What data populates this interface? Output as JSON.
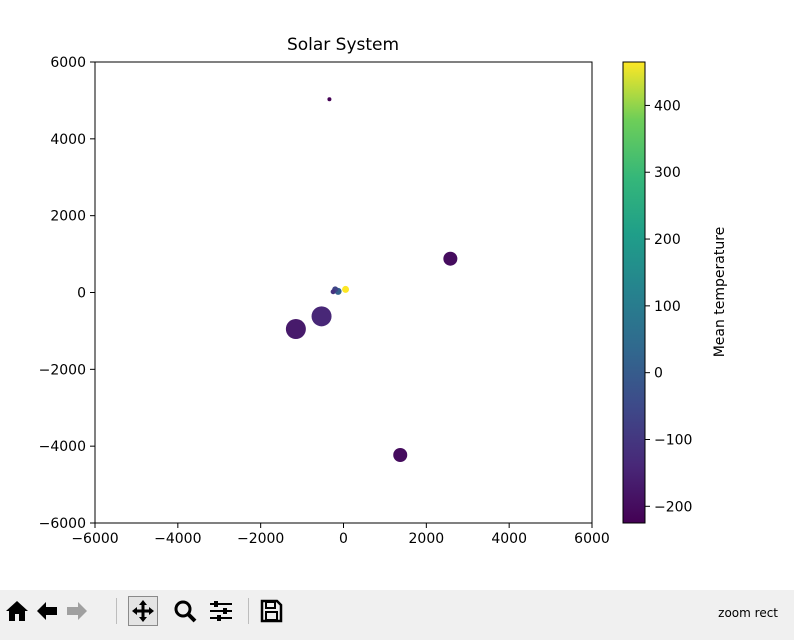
{
  "chart_data": {
    "type": "scatter",
    "title": "Solar System",
    "xlabel": "",
    "ylabel": "",
    "xlim": [
      -6000,
      6000
    ],
    "ylim": [
      -6000,
      6000
    ],
    "xticks": [
      -6000,
      -4000,
      -2000,
      0,
      2000,
      4000,
      6000
    ],
    "yticks": [
      -6000,
      -4000,
      -2000,
      0,
      2000,
      4000,
      6000
    ],
    "grid": false,
    "colormap": "viridis",
    "colorbar": {
      "label": "Mean temperature",
      "range": [
        -225,
        465
      ],
      "ticks": [
        -200,
        -100,
        0,
        100,
        200,
        300,
        400
      ]
    },
    "points": [
      {
        "x": -340,
        "y": 5030,
        "size": 2,
        "temperature": -225
      },
      {
        "x": 2580,
        "y": 880,
        "size": 7,
        "temperature": -200
      },
      {
        "x": -530,
        "y": -620,
        "size": 10,
        "temperature": -140
      },
      {
        "x": -1150,
        "y": -950,
        "size": 10,
        "temperature": -170
      },
      {
        "x": 1370,
        "y": -4230,
        "size": 7,
        "temperature": -200
      },
      {
        "x": 50,
        "y": 80,
        "size": 3.5,
        "temperature": 465
      },
      {
        "x": -130,
        "y": 30,
        "size": 3.5,
        "temperature": 15
      },
      {
        "x": -200,
        "y": 80,
        "size": 3,
        "temperature": -65
      },
      {
        "x": -250,
        "y": 20,
        "size": 2.5,
        "temperature": -110
      }
    ]
  },
  "toolbar": {
    "buttons": [
      {
        "name": "home",
        "glyph": "🏠"
      },
      {
        "name": "back",
        "glyph": "←"
      },
      {
        "name": "forward",
        "glyph": "→"
      },
      {
        "name": "pan",
        "glyph": "✥"
      },
      {
        "name": "zoom",
        "glyph": "🔍"
      },
      {
        "name": "configure",
        "glyph": "☰"
      },
      {
        "name": "save",
        "glyph": "💾"
      }
    ],
    "status": "zoom rect"
  }
}
